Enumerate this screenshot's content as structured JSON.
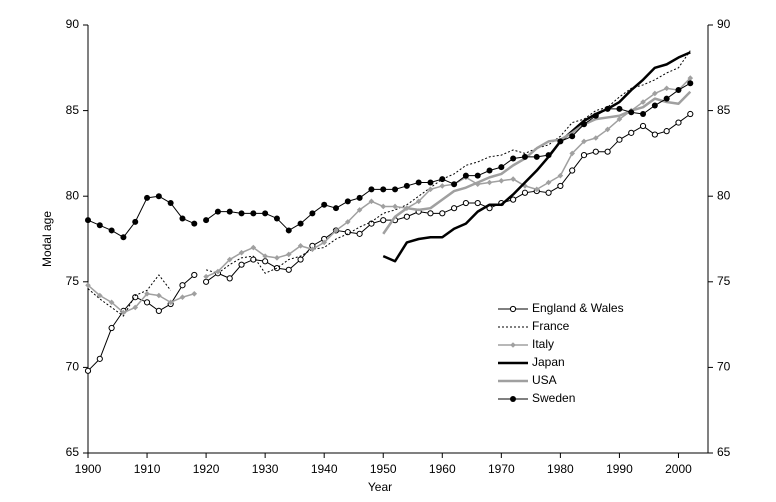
{
  "chart_data": {
    "type": "line",
    "x_label": "Year",
    "y_label": "Modal age",
    "x": [
      1900,
      1902,
      1904,
      1906,
      1908,
      1910,
      1912,
      1914,
      1916,
      1918,
      1919,
      1920,
      1922,
      1924,
      1926,
      1928,
      1930,
      1932,
      1934,
      1936,
      1938,
      1940,
      1942,
      1944,
      1946,
      1948,
      1950,
      1952,
      1954,
      1956,
      1958,
      1960,
      1962,
      1964,
      1966,
      1968,
      1970,
      1972,
      1974,
      1976,
      1978,
      1980,
      1982,
      1984,
      1986,
      1988,
      1990,
      1992,
      1994,
      1996,
      1998,
      2000,
      2002
    ],
    "xlim": [
      1900,
      2005
    ],
    "xticks": [
      1900,
      1910,
      1920,
      1930,
      1940,
      1950,
      1960,
      1970,
      1980,
      1990,
      2000
    ],
    "ylim": [
      65,
      90
    ],
    "yticks": [
      65,
      70,
      75,
      80,
      85,
      90
    ],
    "y2lim": [
      65,
      90
    ],
    "y2ticks": [
      65,
      70,
      75,
      80,
      85,
      90
    ],
    "legend": "lower-right",
    "series": [
      {
        "name": "England & Wales",
        "color": "#000000",
        "width": 1,
        "dash": "none",
        "marker": "circle-open",
        "values": [
          69.8,
          70.5,
          72.3,
          73.3,
          74.1,
          73.8,
          73.3,
          73.7,
          74.8,
          75.4,
          null,
          75,
          75.5,
          75.2,
          76,
          76.3,
          76.2,
          75.8,
          75.7,
          76.3,
          77.1,
          77.5,
          78,
          77.9,
          77.8,
          78.4,
          78.6,
          78.6,
          78.8,
          79.1,
          79,
          79,
          79.3,
          79.6,
          79.6,
          79.3,
          79.6,
          79.8,
          80.2,
          80.3,
          80.2,
          80.6,
          81.5,
          82.4,
          82.6,
          82.6,
          83.3,
          83.7,
          84.1,
          83.6,
          83.8,
          84.3,
          84.8
        ]
      },
      {
        "name": "France",
        "color": "#000000",
        "width": 1,
        "dash": "2 2",
        "marker": "none",
        "values": [
          74.6,
          74,
          73.5,
          73,
          74.2,
          74.5,
          75.4,
          74.5,
          null,
          null,
          null,
          75.7,
          75.5,
          76,
          76.4,
          76.5,
          75.5,
          75.8,
          76.3,
          76.5,
          76.9,
          77,
          77.5,
          77.8,
          78.2,
          78.5,
          79,
          79.2,
          79.5,
          80,
          80.5,
          81,
          81.3,
          81.8,
          82,
          82.3,
          82.4,
          82.7,
          82.5,
          82.8,
          83,
          83.5,
          84.3,
          84.5,
          85,
          85.2,
          85.8,
          86.3,
          86.5,
          86.8,
          87.2,
          87.5,
          88.5
        ]
      },
      {
        "name": "Italy",
        "color": "#a0a0a0",
        "width": 1.5,
        "dash": "none",
        "marker": "diamond",
        "values": [
          74.8,
          74.2,
          73.8,
          73.2,
          73.5,
          74.3,
          74.2,
          73.8,
          74.1,
          74.3,
          null,
          75.3,
          75.6,
          76.3,
          76.7,
          77,
          76.5,
          76.4,
          76.6,
          77.1,
          76.9,
          77.3,
          78,
          78.5,
          79.2,
          79.7,
          79.4,
          79.4,
          79.3,
          79.7,
          80.4,
          80.6,
          80.7,
          81.1,
          80.7,
          80.8,
          80.9,
          81,
          80.6,
          80.4,
          80.8,
          81.2,
          82.5,
          83.2,
          83.4,
          83.9,
          84.5,
          85,
          85.5,
          86,
          86.3,
          86.2,
          86.9
        ]
      },
      {
        "name": "Japan",
        "color": "#000000",
        "width": 2.5,
        "dash": "none",
        "marker": "none",
        "values": [
          null,
          null,
          null,
          null,
          null,
          null,
          null,
          null,
          null,
          null,
          null,
          null,
          null,
          null,
          null,
          null,
          null,
          null,
          null,
          null,
          null,
          null,
          null,
          null,
          null,
          null,
          76.5,
          76.2,
          77.3,
          77.5,
          77.6,
          77.6,
          78.1,
          78.4,
          79.1,
          79.5,
          79.5,
          80.1,
          80.8,
          81.5,
          82.3,
          83.2,
          83.8,
          84.4,
          84.8,
          85.1,
          85.5,
          86.2,
          86.8,
          87.5,
          87.7,
          88.1,
          88.4
        ]
      },
      {
        "name": "USA",
        "color": "#a0a0a0",
        "width": 2.5,
        "dash": "none",
        "marker": "none",
        "values": [
          null,
          null,
          null,
          null,
          null,
          null,
          null,
          null,
          null,
          null,
          null,
          null,
          null,
          null,
          null,
          null,
          null,
          null,
          null,
          null,
          null,
          null,
          null,
          null,
          null,
          null,
          77.8,
          78.8,
          79.3,
          79.2,
          79.3,
          79.8,
          80.3,
          80.5,
          80.8,
          81.1,
          81.3,
          81.8,
          82.2,
          82.8,
          83.2,
          83.3,
          83.7,
          84.2,
          84.5,
          84.6,
          84.7,
          85,
          85.2,
          85.7,
          85.5,
          85.4,
          86.1
        ]
      },
      {
        "name": "Sweden",
        "color": "#000000",
        "width": 1,
        "dash": "none",
        "marker": "circle-filled",
        "values": [
          78.6,
          78.3,
          78,
          77.6,
          78.5,
          79.9,
          80,
          79.6,
          78.7,
          78.4,
          null,
          78.6,
          79.1,
          79.1,
          79,
          79,
          79,
          78.7,
          78,
          78.4,
          79,
          79.5,
          79.3,
          79.7,
          79.9,
          80.4,
          80.4,
          80.4,
          80.6,
          80.8,
          80.8,
          81,
          80.7,
          81.2,
          81.2,
          81.5,
          81.7,
          82.2,
          82.3,
          82.3,
          82.4,
          83.2,
          83.5,
          84.2,
          84.7,
          85.1,
          85.1,
          84.9,
          84.8,
          85.3,
          85.7,
          86.2,
          86.6
        ]
      }
    ]
  }
}
